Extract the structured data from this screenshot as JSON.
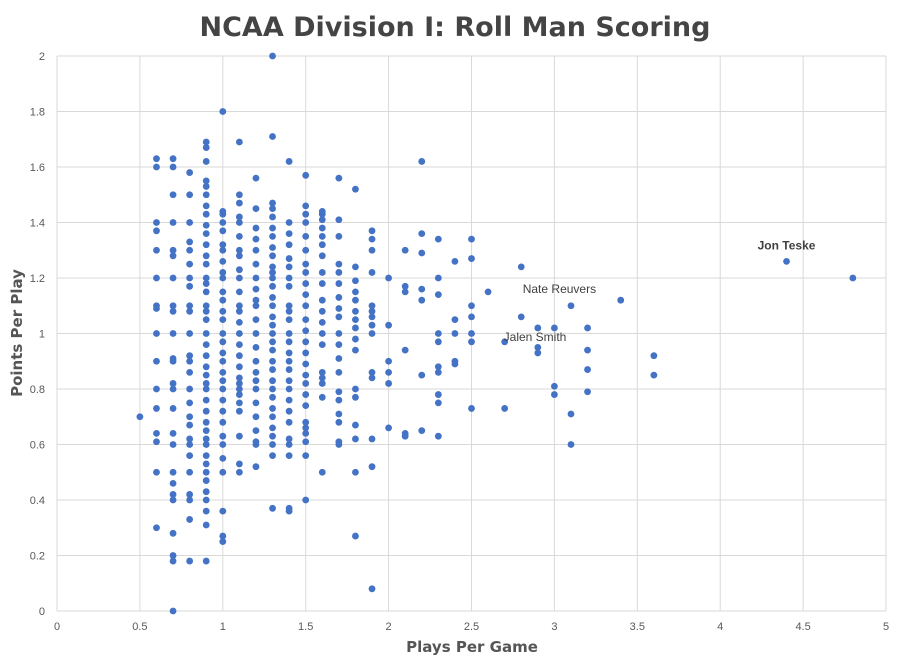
{
  "chart_data": {
    "type": "scatter",
    "title": "NCAA Division I: Roll Man Scoring",
    "xlabel": "Plays Per Game",
    "ylabel": "Points Per Play",
    "xlim": [
      0,
      5
    ],
    "ylim": [
      0,
      2
    ],
    "x_ticks": [
      0,
      0.5,
      1,
      1.5,
      2,
      2.5,
      3,
      3.5,
      4,
      4.5,
      5
    ],
    "y_ticks": [
      0,
      0.2,
      0.4,
      0.6,
      0.8,
      1,
      1.2,
      1.4,
      1.6,
      1.8,
      2
    ],
    "grid": true,
    "color": "#4472c4",
    "annotations": [
      {
        "text": "Jon Teske",
        "x": 4.4,
        "y": 1.26,
        "bold": true
      },
      {
        "text": "Nate Reuvers",
        "x": 3.4,
        "y": 1.12,
        "bold": false
      },
      {
        "text": "Jalen Smith",
        "x": 2.7,
        "y": 0.97,
        "bold": false
      }
    ],
    "points": [
      [
        0.5,
        0.7
      ],
      [
        0.6,
        1.63
      ],
      [
        0.6,
        1.6
      ],
      [
        0.6,
        1.4
      ],
      [
        0.6,
        1.37
      ],
      [
        0.6,
        1.3
      ],
      [
        0.6,
        1.2
      ],
      [
        0.6,
        1.1
      ],
      [
        0.6,
        1.09
      ],
      [
        0.6,
        1.0
      ],
      [
        0.6,
        0.9
      ],
      [
        0.6,
        0.8
      ],
      [
        0.6,
        0.73
      ],
      [
        0.6,
        0.64
      ],
      [
        0.6,
        0.61
      ],
      [
        0.6,
        0.5
      ],
      [
        0.6,
        0.3
      ],
      [
        0.7,
        1.63
      ],
      [
        0.7,
        1.6
      ],
      [
        0.7,
        1.5
      ],
      [
        0.7,
        1.4
      ],
      [
        0.7,
        1.3
      ],
      [
        0.7,
        1.28
      ],
      [
        0.7,
        1.2
      ],
      [
        0.7,
        1.1
      ],
      [
        0.7,
        1.08
      ],
      [
        0.7,
        1.0
      ],
      [
        0.7,
        0.91
      ],
      [
        0.7,
        0.9
      ],
      [
        0.7,
        0.82
      ],
      [
        0.7,
        0.8
      ],
      [
        0.7,
        0.73
      ],
      [
        0.7,
        0.64
      ],
      [
        0.7,
        0.6
      ],
      [
        0.7,
        0.5
      ],
      [
        0.7,
        0.46
      ],
      [
        0.7,
        0.42
      ],
      [
        0.7,
        0.4
      ],
      [
        0.7,
        0.28
      ],
      [
        0.7,
        0.2
      ],
      [
        0.7,
        0.18
      ],
      [
        0.7,
        0.0
      ],
      [
        0.8,
        1.58
      ],
      [
        0.8,
        1.5
      ],
      [
        0.8,
        1.4
      ],
      [
        0.8,
        1.33
      ],
      [
        0.8,
        1.3
      ],
      [
        0.8,
        1.25
      ],
      [
        0.8,
        1.2
      ],
      [
        0.8,
        1.17
      ],
      [
        0.8,
        1.1
      ],
      [
        0.8,
        1.08
      ],
      [
        0.8,
        1.0
      ],
      [
        0.8,
        0.92
      ],
      [
        0.8,
        0.9
      ],
      [
        0.8,
        0.86
      ],
      [
        0.8,
        0.8
      ],
      [
        0.8,
        0.75
      ],
      [
        0.8,
        0.7
      ],
      [
        0.8,
        0.67
      ],
      [
        0.8,
        0.62
      ],
      [
        0.8,
        0.6
      ],
      [
        0.8,
        0.56
      ],
      [
        0.8,
        0.5
      ],
      [
        0.8,
        0.42
      ],
      [
        0.8,
        0.4
      ],
      [
        0.8,
        0.33
      ],
      [
        0.8,
        0.18
      ],
      [
        0.9,
        1.69
      ],
      [
        0.9,
        1.67
      ],
      [
        0.9,
        1.62
      ],
      [
        0.9,
        1.55
      ],
      [
        0.9,
        1.53
      ],
      [
        0.9,
        1.5
      ],
      [
        0.9,
        1.46
      ],
      [
        0.9,
        1.43
      ],
      [
        0.9,
        1.39
      ],
      [
        0.9,
        1.36
      ],
      [
        0.9,
        1.32
      ],
      [
        0.9,
        1.28
      ],
      [
        0.9,
        1.25
      ],
      [
        0.9,
        1.2
      ],
      [
        0.9,
        1.18
      ],
      [
        0.9,
        1.15
      ],
      [
        0.9,
        1.1
      ],
      [
        0.9,
        1.08
      ],
      [
        0.9,
        1.05
      ],
      [
        0.9,
        1.0
      ],
      [
        0.9,
        0.96
      ],
      [
        0.9,
        0.92
      ],
      [
        0.9,
        0.88
      ],
      [
        0.9,
        0.85
      ],
      [
        0.9,
        0.82
      ],
      [
        0.9,
        0.8
      ],
      [
        0.9,
        0.76
      ],
      [
        0.9,
        0.72
      ],
      [
        0.9,
        0.68
      ],
      [
        0.9,
        0.65
      ],
      [
        0.9,
        0.62
      ],
      [
        0.9,
        0.6
      ],
      [
        0.9,
        0.56
      ],
      [
        0.9,
        0.53
      ],
      [
        0.9,
        0.5
      ],
      [
        0.9,
        0.47
      ],
      [
        0.9,
        0.43
      ],
      [
        0.9,
        0.4
      ],
      [
        0.9,
        0.36
      ],
      [
        0.9,
        0.31
      ],
      [
        0.9,
        0.18
      ],
      [
        1.0,
        1.8
      ],
      [
        1.0,
        1.44
      ],
      [
        1.0,
        1.43
      ],
      [
        1.0,
        1.4
      ],
      [
        1.0,
        1.37
      ],
      [
        1.0,
        1.32
      ],
      [
        1.0,
        1.3
      ],
      [
        1.0,
        1.26
      ],
      [
        1.0,
        1.22
      ],
      [
        1.0,
        1.2
      ],
      [
        1.0,
        1.15
      ],
      [
        1.0,
        1.12
      ],
      [
        1.0,
        1.08
      ],
      [
        1.0,
        1.05
      ],
      [
        1.0,
        1.0
      ],
      [
        1.0,
        0.97
      ],
      [
        1.0,
        0.93
      ],
      [
        1.0,
        0.9
      ],
      [
        1.0,
        0.86
      ],
      [
        1.0,
        0.83
      ],
      [
        1.0,
        0.8
      ],
      [
        1.0,
        0.76
      ],
      [
        1.0,
        0.72
      ],
      [
        1.0,
        0.68
      ],
      [
        1.0,
        0.63
      ],
      [
        1.0,
        0.6
      ],
      [
        1.0,
        0.55
      ],
      [
        1.0,
        0.5
      ],
      [
        1.0,
        0.36
      ],
      [
        1.0,
        0.27
      ],
      [
        1.0,
        0.25
      ],
      [
        1.1,
        1.69
      ],
      [
        1.1,
        1.5
      ],
      [
        1.1,
        1.47
      ],
      [
        1.1,
        1.42
      ],
      [
        1.1,
        1.4
      ],
      [
        1.1,
        1.35
      ],
      [
        1.1,
        1.3
      ],
      [
        1.1,
        1.28
      ],
      [
        1.1,
        1.23
      ],
      [
        1.1,
        1.2
      ],
      [
        1.1,
        1.15
      ],
      [
        1.1,
        1.1
      ],
      [
        1.1,
        1.08
      ],
      [
        1.1,
        1.04
      ],
      [
        1.1,
        1.0
      ],
      [
        1.1,
        0.96
      ],
      [
        1.1,
        0.92
      ],
      [
        1.1,
        0.88
      ],
      [
        1.1,
        0.84
      ],
      [
        1.1,
        0.82
      ],
      [
        1.1,
        0.8
      ],
      [
        1.1,
        0.78
      ],
      [
        1.1,
        0.75
      ],
      [
        1.1,
        0.72
      ],
      [
        1.1,
        0.63
      ],
      [
        1.1,
        0.53
      ],
      [
        1.1,
        0.5
      ],
      [
        1.2,
        1.56
      ],
      [
        1.2,
        1.45
      ],
      [
        1.2,
        1.38
      ],
      [
        1.2,
        1.34
      ],
      [
        1.2,
        1.3
      ],
      [
        1.2,
        1.25
      ],
      [
        1.2,
        1.2
      ],
      [
        1.2,
        1.16
      ],
      [
        1.2,
        1.12
      ],
      [
        1.2,
        1.1
      ],
      [
        1.2,
        1.05
      ],
      [
        1.2,
        1.0
      ],
      [
        1.2,
        0.95
      ],
      [
        1.2,
        0.9
      ],
      [
        1.2,
        0.86
      ],
      [
        1.2,
        0.83
      ],
      [
        1.2,
        0.8
      ],
      [
        1.2,
        0.75
      ],
      [
        1.2,
        0.7
      ],
      [
        1.2,
        0.65
      ],
      [
        1.2,
        0.61
      ],
      [
        1.2,
        0.6
      ],
      [
        1.2,
        0.52
      ],
      [
        1.3,
        2.0
      ],
      [
        1.3,
        1.71
      ],
      [
        1.3,
        1.47
      ],
      [
        1.3,
        1.45
      ],
      [
        1.3,
        1.42
      ],
      [
        1.3,
        1.38
      ],
      [
        1.3,
        1.35
      ],
      [
        1.3,
        1.31
      ],
      [
        1.3,
        1.28
      ],
      [
        1.3,
        1.24
      ],
      [
        1.3,
        1.22
      ],
      [
        1.3,
        1.2
      ],
      [
        1.3,
        1.17
      ],
      [
        1.3,
        1.13
      ],
      [
        1.3,
        1.1
      ],
      [
        1.3,
        1.06
      ],
      [
        1.3,
        1.03
      ],
      [
        1.3,
        1.0
      ],
      [
        1.3,
        0.97
      ],
      [
        1.3,
        0.94
      ],
      [
        1.3,
        0.9
      ],
      [
        1.3,
        0.87
      ],
      [
        1.3,
        0.83
      ],
      [
        1.3,
        0.8
      ],
      [
        1.3,
        0.77
      ],
      [
        1.3,
        0.73
      ],
      [
        1.3,
        0.7
      ],
      [
        1.3,
        0.66
      ],
      [
        1.3,
        0.63
      ],
      [
        1.3,
        0.6
      ],
      [
        1.3,
        0.56
      ],
      [
        1.3,
        0.37
      ],
      [
        1.4,
        1.62
      ],
      [
        1.4,
        1.4
      ],
      [
        1.4,
        1.36
      ],
      [
        1.4,
        1.32
      ],
      [
        1.4,
        1.27
      ],
      [
        1.4,
        1.24
      ],
      [
        1.4,
        1.2
      ],
      [
        1.4,
        1.17
      ],
      [
        1.4,
        1.1
      ],
      [
        1.4,
        1.08
      ],
      [
        1.4,
        1.05
      ],
      [
        1.4,
        1.0
      ],
      [
        1.4,
        0.97
      ],
      [
        1.4,
        0.93
      ],
      [
        1.4,
        0.9
      ],
      [
        1.4,
        0.87
      ],
      [
        1.4,
        0.83
      ],
      [
        1.4,
        0.8
      ],
      [
        1.4,
        0.76
      ],
      [
        1.4,
        0.72
      ],
      [
        1.4,
        0.68
      ],
      [
        1.4,
        0.62
      ],
      [
        1.4,
        0.6
      ],
      [
        1.4,
        0.56
      ],
      [
        1.4,
        0.37
      ],
      [
        1.4,
        0.36
      ],
      [
        1.5,
        1.57
      ],
      [
        1.5,
        1.46
      ],
      [
        1.5,
        1.43
      ],
      [
        1.5,
        1.4
      ],
      [
        1.5,
        1.35
      ],
      [
        1.5,
        1.3
      ],
      [
        1.5,
        1.25
      ],
      [
        1.5,
        1.22
      ],
      [
        1.5,
        1.18
      ],
      [
        1.5,
        1.14
      ],
      [
        1.5,
        1.1
      ],
      [
        1.5,
        1.05
      ],
      [
        1.5,
        1.01
      ],
      [
        1.5,
        0.97
      ],
      [
        1.5,
        0.93
      ],
      [
        1.5,
        0.89
      ],
      [
        1.5,
        0.85
      ],
      [
        1.5,
        0.82
      ],
      [
        1.5,
        0.78
      ],
      [
        1.5,
        0.74
      ],
      [
        1.5,
        0.68
      ],
      [
        1.5,
        0.66
      ],
      [
        1.5,
        0.64
      ],
      [
        1.5,
        0.61
      ],
      [
        1.5,
        0.56
      ],
      [
        1.5,
        0.4
      ],
      [
        1.6,
        1.44
      ],
      [
        1.6,
        1.43
      ],
      [
        1.6,
        1.41
      ],
      [
        1.6,
        1.38
      ],
      [
        1.6,
        1.35
      ],
      [
        1.6,
        1.32
      ],
      [
        1.6,
        1.28
      ],
      [
        1.6,
        1.22
      ],
      [
        1.6,
        1.18
      ],
      [
        1.6,
        1.12
      ],
      [
        1.6,
        1.08
      ],
      [
        1.6,
        1.04
      ],
      [
        1.6,
        1.0
      ],
      [
        1.6,
        0.96
      ],
      [
        1.6,
        0.86
      ],
      [
        1.6,
        0.84
      ],
      [
        1.6,
        0.82
      ],
      [
        1.6,
        0.77
      ],
      [
        1.6,
        0.5
      ],
      [
        1.7,
        1.56
      ],
      [
        1.7,
        1.41
      ],
      [
        1.7,
        1.35
      ],
      [
        1.7,
        1.25
      ],
      [
        1.7,
        1.22
      ],
      [
        1.7,
        1.18
      ],
      [
        1.7,
        1.13
      ],
      [
        1.7,
        1.09
      ],
      [
        1.7,
        1.06
      ],
      [
        1.7,
        1.0
      ],
      [
        1.7,
        0.96
      ],
      [
        1.7,
        0.91
      ],
      [
        1.7,
        0.86
      ],
      [
        1.7,
        0.79
      ],
      [
        1.7,
        0.76
      ],
      [
        1.7,
        0.71
      ],
      [
        1.7,
        0.68
      ],
      [
        1.7,
        0.61
      ],
      [
        1.7,
        0.6
      ],
      [
        1.8,
        1.52
      ],
      [
        1.8,
        1.24
      ],
      [
        1.8,
        1.19
      ],
      [
        1.8,
        1.15
      ],
      [
        1.8,
        1.12
      ],
      [
        1.8,
        1.08
      ],
      [
        1.8,
        1.05
      ],
      [
        1.8,
        1.02
      ],
      [
        1.8,
        0.98
      ],
      [
        1.8,
        0.94
      ],
      [
        1.8,
        0.8
      ],
      [
        1.8,
        0.77
      ],
      [
        1.8,
        0.67
      ],
      [
        1.8,
        0.62
      ],
      [
        1.8,
        0.5
      ],
      [
        1.8,
        0.27
      ],
      [
        1.9,
        1.37
      ],
      [
        1.9,
        1.34
      ],
      [
        1.9,
        1.3
      ],
      [
        1.9,
        1.22
      ],
      [
        1.9,
        1.1
      ],
      [
        1.9,
        1.08
      ],
      [
        1.9,
        1.06
      ],
      [
        1.9,
        1.03
      ],
      [
        1.9,
        1.0
      ],
      [
        1.9,
        0.86
      ],
      [
        1.9,
        0.84
      ],
      [
        1.9,
        0.62
      ],
      [
        1.9,
        0.52
      ],
      [
        1.9,
        0.08
      ],
      [
        2.0,
        1.2
      ],
      [
        2.0,
        1.03
      ],
      [
        2.0,
        0.9
      ],
      [
        2.0,
        0.86
      ],
      [
        2.0,
        0.82
      ],
      [
        2.0,
        0.66
      ],
      [
        2.1,
        1.3
      ],
      [
        2.1,
        1.17
      ],
      [
        2.1,
        1.15
      ],
      [
        2.1,
        0.94
      ],
      [
        2.1,
        0.64
      ],
      [
        2.1,
        0.63
      ],
      [
        2.2,
        1.62
      ],
      [
        2.2,
        1.36
      ],
      [
        2.2,
        1.29
      ],
      [
        2.2,
        1.16
      ],
      [
        2.2,
        1.12
      ],
      [
        2.2,
        0.85
      ],
      [
        2.2,
        0.65
      ],
      [
        2.3,
        1.34
      ],
      [
        2.3,
        1.2
      ],
      [
        2.3,
        1.14
      ],
      [
        2.3,
        1.0
      ],
      [
        2.3,
        0.97
      ],
      [
        2.3,
        0.88
      ],
      [
        2.3,
        0.86
      ],
      [
        2.3,
        0.78
      ],
      [
        2.3,
        0.75
      ],
      [
        2.3,
        0.63
      ],
      [
        2.4,
        1.26
      ],
      [
        2.4,
        1.05
      ],
      [
        2.4,
        1.0
      ],
      [
        2.4,
        0.9
      ],
      [
        2.4,
        0.89
      ],
      [
        2.5,
        1.34
      ],
      [
        2.5,
        1.27
      ],
      [
        2.5,
        1.1
      ],
      [
        2.5,
        1.06
      ],
      [
        2.5,
        1.0
      ],
      [
        2.5,
        0.97
      ],
      [
        2.5,
        0.73
      ],
      [
        2.6,
        1.15
      ],
      [
        2.7,
        0.97
      ],
      [
        2.7,
        0.73
      ],
      [
        2.8,
        1.24
      ],
      [
        2.8,
        1.06
      ],
      [
        2.9,
        1.02
      ],
      [
        2.9,
        0.95
      ],
      [
        2.9,
        0.93
      ],
      [
        3.0,
        1.02
      ],
      [
        3.0,
        0.81
      ],
      [
        3.0,
        0.78
      ],
      [
        3.1,
        1.1
      ],
      [
        3.1,
        0.71
      ],
      [
        3.1,
        0.6
      ],
      [
        3.2,
        1.02
      ],
      [
        3.2,
        0.94
      ],
      [
        3.2,
        0.87
      ],
      [
        3.2,
        0.79
      ],
      [
        3.4,
        1.12
      ],
      [
        3.6,
        0.92
      ],
      [
        3.6,
        0.85
      ],
      [
        4.4,
        1.26
      ],
      [
        4.8,
        1.2
      ]
    ]
  }
}
